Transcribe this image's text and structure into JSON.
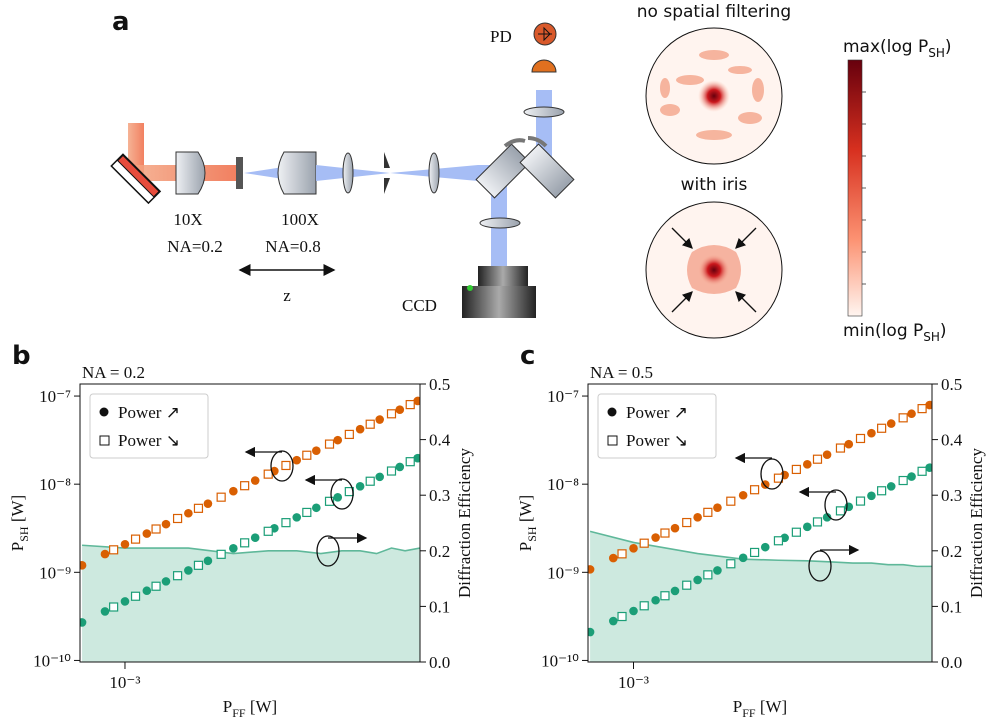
{
  "panel_a": {
    "label": "a",
    "pd": "PD",
    "objective_1": {
      "mag": "10X",
      "na": "NA=0.2"
    },
    "objective_2": {
      "mag": "100X",
      "na": "NA=0.8"
    },
    "z": "z",
    "ccd": "CCD",
    "image_top": "no spatial filtering",
    "image_bottom": "with iris",
    "colorbar_max": {
      "pre": "max(log P",
      "sub": "SH",
      "post": ")"
    },
    "colorbar_min": {
      "pre": "min(log P",
      "sub": "SH",
      "post": ")"
    }
  },
  "chart_data": [
    {
      "type": "scatter",
      "panel_label": "b",
      "annotation": "NA = 0.2",
      "xlabel": {
        "main": "P",
        "sub": "FF",
        "unit": " [W]"
      },
      "ylabel": {
        "main": "P",
        "sub": "SH",
        "unit": " [W]"
      },
      "y2label": "Diffraction Efficiency",
      "xscale": "log",
      "yscale": "log",
      "xlim": [
        0.00075,
        0.0066
      ],
      "xticks": [
        {
          "value": 0.001,
          "label": "10⁻³"
        }
      ],
      "ylim": [
        9.6e-11,
        1.37e-07
      ],
      "yticks": [
        {
          "value": 1e-10,
          "label": "10⁻¹⁰"
        },
        {
          "value": 1e-09,
          "label": "10⁻⁹"
        },
        {
          "value": 1e-08,
          "label": "10⁻⁸"
        },
        {
          "value": 1e-07,
          "label": "10⁻⁷"
        }
      ],
      "y2lim": [
        0,
        0.5
      ],
      "y2ticks": [
        {
          "value": 0,
          "label": "0.0"
        },
        0.1,
        0.2,
        0.3,
        0.4,
        0.5
      ],
      "legend": "upper left",
      "series": [
        {
          "name": "Power ↗",
          "marker": "filled",
          "color": "#d95f02",
          "x": [
            0.00076,
            0.00088,
            0.001,
            0.00115,
            0.0013,
            0.0015,
            0.0017,
            0.002,
            0.0023,
            0.0026,
            0.003,
            0.0034,
            0.0039,
            0.0045,
            0.0051,
            0.0058,
            0.0065
          ],
          "values": [
            1.2e-09,
            1.61e-09,
            2.08e-09,
            2.75e-09,
            3.52e-09,
            4.68e-09,
            6.01e-09,
            8.32e-09,
            1.1e-08,
            1.41e-08,
            1.87e-08,
            2.4e-08,
            3.16e-08,
            4.21e-08,
            5.41e-08,
            7e-08,
            8.79e-08
          ]
        },
        {
          "name": "Power ↘",
          "marker": "open",
          "color": "#d95f02",
          "x": [
            0.00093,
            0.00107,
            0.00122,
            0.0014,
            0.0016,
            0.00185,
            0.00215,
            0.0025,
            0.0028,
            0.0032,
            0.0037,
            0.0042,
            0.0048,
            0.0055,
            0.0062
          ],
          "values": [
            1.8e-09,
            2.38e-09,
            3.1e-09,
            4.08e-09,
            5.32e-09,
            7.12e-09,
            9.61e-09,
            1.3e-08,
            1.63e-08,
            2.13e-08,
            2.85e-08,
            3.67e-08,
            4.79e-08,
            6.29e-08,
            8e-08
          ]
        },
        {
          "name": "Power ↗",
          "marker": "filled",
          "color": "#1b9e77",
          "x": [
            0.00076,
            0.00088,
            0.001,
            0.00115,
            0.0013,
            0.0015,
            0.0017,
            0.002,
            0.0023,
            0.0026,
            0.003,
            0.0034,
            0.0039,
            0.0045,
            0.0051,
            0.0058,
            0.0065
          ],
          "values": [
            2.7e-10,
            3.6e-10,
            4.67e-10,
            6.18e-10,
            7.89e-10,
            1.05e-09,
            1.35e-09,
            1.87e-09,
            2.47e-09,
            3.16e-09,
            4.2e-09,
            5.4e-09,
            7.1e-09,
            9.46e-09,
            1.21e-08,
            1.57e-08,
            1.97e-08
          ]
        },
        {
          "name": "Power ↘",
          "marker": "open",
          "color": "#1b9e77",
          "x": [
            0.00093,
            0.00107,
            0.00122,
            0.0014,
            0.0016,
            0.00185,
            0.00215,
            0.0025,
            0.0028,
            0.0032,
            0.0037,
            0.0042,
            0.0048,
            0.0055,
            0.0062
          ],
          "values": [
            4.04e-10,
            5.35e-10,
            6.95e-10,
            9.15e-10,
            1.2e-09,
            1.6e-09,
            2.16e-09,
            2.92e-09,
            3.66e-09,
            4.78e-09,
            6.39e-09,
            8.24e-09,
            1.08e-08,
            1.41e-08,
            1.8e-08
          ]
        },
        {
          "type": "area",
          "axis": "y2",
          "color": "#5fb89a",
          "fill": "#cde9df",
          "x": [
            0.00076,
            0.001,
            0.0015,
            0.002,
            0.0025,
            0.003,
            0.0035,
            0.004,
            0.0045,
            0.005,
            0.0055,
            0.006,
            0.0066
          ],
          "values": [
            0.21,
            0.205,
            0.205,
            0.195,
            0.2,
            0.2,
            0.195,
            0.2,
            0.2,
            0.195,
            0.205,
            0.2,
            0.205
          ]
        }
      ]
    },
    {
      "type": "scatter",
      "panel_label": "c",
      "annotation": "NA = 0.5",
      "xlabel": {
        "main": "P",
        "sub": "FF",
        "unit": " [W]"
      },
      "ylabel": {
        "main": "P",
        "sub": "SH",
        "unit": " [W]"
      },
      "y2label": "Diffraction Efficiency",
      "xscale": "log",
      "yscale": "log",
      "xlim": [
        0.00075,
        0.0066
      ],
      "xticks": [
        {
          "value": 0.001,
          "label": "10⁻³"
        }
      ],
      "ylim": [
        9.6e-11,
        1.37e-07
      ],
      "yticks": [
        {
          "value": 1e-10,
          "label": "10⁻¹⁰"
        },
        {
          "value": 1e-09,
          "label": "10⁻⁹"
        },
        {
          "value": 1e-08,
          "label": "10⁻⁸"
        },
        {
          "value": 1e-07,
          "label": "10⁻⁷"
        }
      ],
      "y2lim": [
        0,
        0.5
      ],
      "y2ticks": [
        {
          "value": 0,
          "label": "0.0"
        },
        0.1,
        0.2,
        0.3,
        0.4,
        0.5
      ],
      "legend": "upper left",
      "series": [
        {
          "name": "Power ↗",
          "marker": "filled",
          "color": "#d95f02",
          "x": [
            0.00076,
            0.00088,
            0.001,
            0.00115,
            0.0013,
            0.0015,
            0.0017,
            0.002,
            0.0023,
            0.0026,
            0.003,
            0.0034,
            0.0039,
            0.0045,
            0.0051,
            0.0058,
            0.0065
          ],
          "values": [
            1.08e-09,
            1.45e-09,
            1.87e-09,
            2.48e-09,
            3.17e-09,
            4.21e-09,
            5.41e-09,
            7.49e-09,
            9.9e-09,
            1.27e-08,
            1.68e-08,
            2.16e-08,
            2.84e-08,
            3.79e-08,
            4.87e-08,
            6.3e-08,
            7.91e-08
          ]
        },
        {
          "name": "Power ↘",
          "marker": "open",
          "color": "#d95f02",
          "x": [
            0.00093,
            0.00107,
            0.00122,
            0.0014,
            0.0016,
            0.00185,
            0.00215,
            0.0025,
            0.0028,
            0.0032,
            0.0037,
            0.0042,
            0.0048,
            0.0055,
            0.0062
          ],
          "values": [
            1.62e-09,
            2.14e-09,
            2.79e-09,
            3.67e-09,
            4.79e-09,
            6.41e-09,
            8.65e-09,
            1.17e-08,
            1.47e-08,
            1.92e-08,
            2.57e-08,
            3.3e-08,
            4.31e-08,
            5.66e-08,
            7.2e-08
          ]
        },
        {
          "name": "Power ↗",
          "marker": "filled",
          "color": "#1b9e77",
          "x": [
            0.00076,
            0.00088,
            0.001,
            0.00115,
            0.0013,
            0.0015,
            0.0017,
            0.002,
            0.0023,
            0.0026,
            0.003,
            0.0034,
            0.0039,
            0.0045,
            0.0051,
            0.0058,
            0.0065
          ],
          "values": [
            2.1e-10,
            2.8e-10,
            3.64e-10,
            4.82e-10,
            6.15e-10,
            8.19e-10,
            1.05e-09,
            1.46e-09,
            1.93e-09,
            2.46e-09,
            3.28e-09,
            4.21e-09,
            5.54e-09,
            7.38e-09,
            9.44e-09,
            1.22e-08,
            1.54e-08
          ]
        },
        {
          "name": "Power ↘",
          "marker": "open",
          "color": "#1b9e77",
          "x": [
            0.00093,
            0.00107,
            0.00122,
            0.0014,
            0.0016,
            0.00185,
            0.00215,
            0.0025,
            0.0028,
            0.0032,
            0.0037,
            0.0042,
            0.0048,
            0.0055,
            0.0062
          ],
          "values": [
            3.15e-10,
            4.17e-10,
            5.42e-10,
            7.14e-10,
            9.36e-10,
            1.25e-09,
            1.68e-09,
            2.28e-09,
            2.85e-09,
            3.73e-09,
            4.98e-09,
            6.43e-09,
            8.42e-09,
            1.1e-08,
            1.4e-08
          ]
        },
        {
          "type": "area",
          "axis": "y2",
          "color": "#5fb89a",
          "fill": "#cde9df",
          "x": [
            0.00076,
            0.001,
            0.0015,
            0.002,
            0.0025,
            0.003,
            0.0035,
            0.004,
            0.0045,
            0.005,
            0.0055,
            0.006,
            0.0066
          ],
          "values": [
            0.235,
            0.215,
            0.195,
            0.185,
            0.183,
            0.182,
            0.18,
            0.178,
            0.178,
            0.175,
            0.175,
            0.172,
            0.172
          ]
        }
      ]
    }
  ]
}
